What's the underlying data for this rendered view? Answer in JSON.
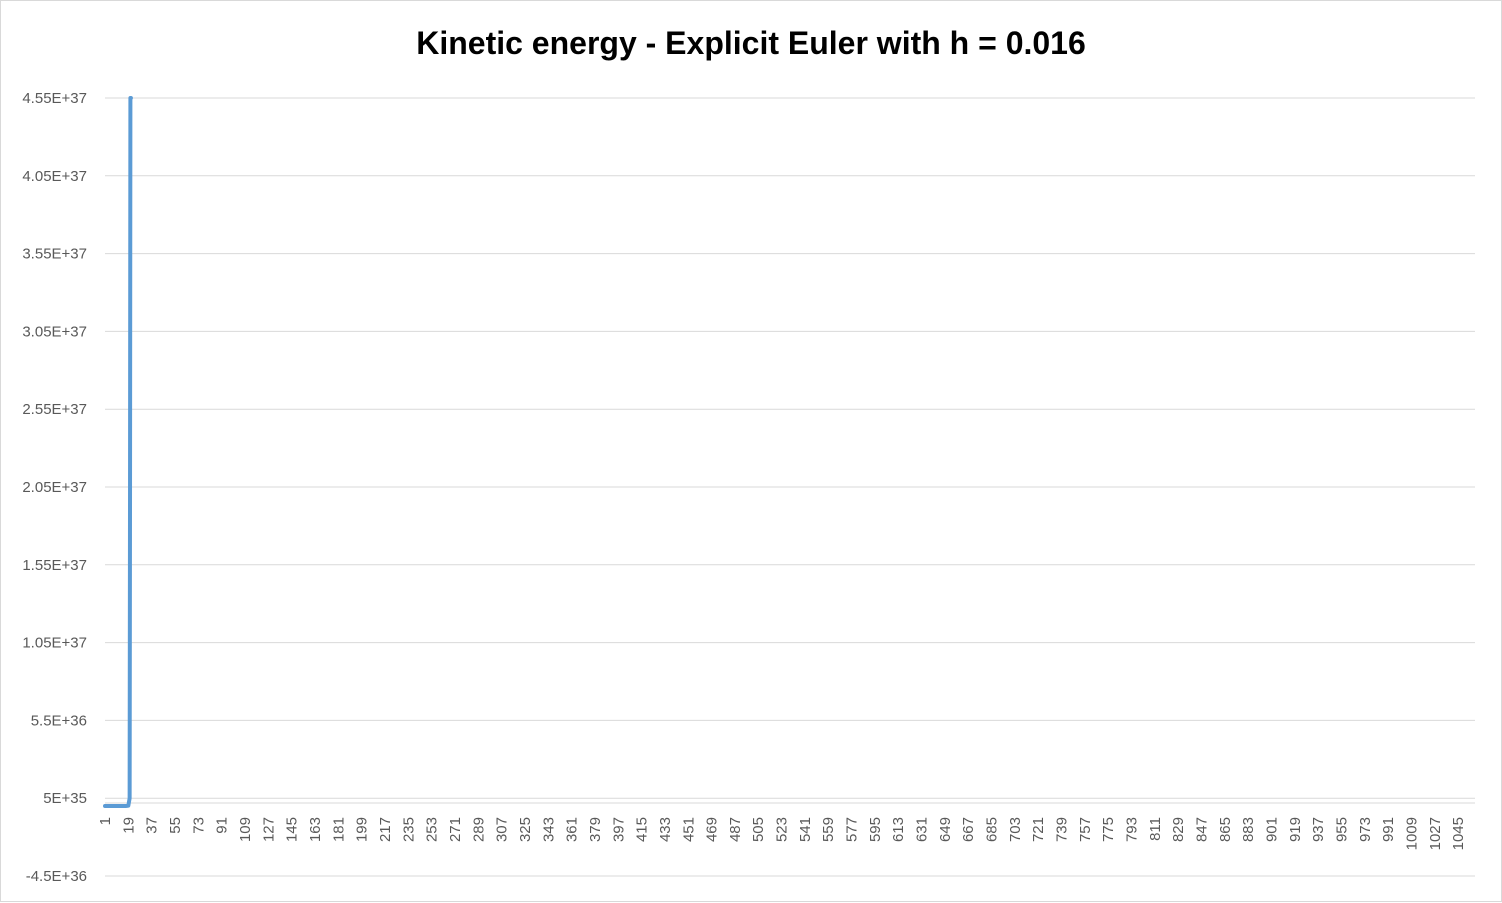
{
  "chart_data": {
    "type": "line",
    "title": "Kinetic energy - Explicit Euler with h = 0.016",
    "xlabel": "",
    "ylabel": "",
    "x_tick_labels": [
      "1",
      "19",
      "37",
      "55",
      "73",
      "91",
      "109",
      "127",
      "145",
      "163",
      "181",
      "199",
      "217",
      "235",
      "253",
      "271",
      "289",
      "307",
      "325",
      "343",
      "361",
      "379",
      "397",
      "415",
      "433",
      "451",
      "469",
      "487",
      "505",
      "523",
      "541",
      "559",
      "577",
      "595",
      "613",
      "631",
      "649",
      "667",
      "685",
      "703",
      "721",
      "739",
      "757",
      "775",
      "793",
      "811",
      "829",
      "847",
      "865",
      "883",
      "901",
      "919",
      "937",
      "955",
      "973",
      "991",
      "1009",
      "1027",
      "1045"
    ],
    "y_tick_labels": [
      "-4.5E+36",
      "5E+35",
      "5.5E+36",
      "1.05E+37",
      "1.55E+37",
      "2.05E+37",
      "2.55E+37",
      "3.05E+37",
      "3.55E+37",
      "4.05E+37",
      "4.55E+37"
    ],
    "y_ticks": [
      -4.5e+36,
      5e+35,
      5.5e+36,
      1.05e+37,
      1.55e+37,
      2.05e+37,
      2.55e+37,
      3.05e+37,
      3.55e+37,
      4.05e+37,
      4.55e+37
    ],
    "ylim": [
      -4.5e+36,
      4.55e+37
    ],
    "x_range": [
      1,
      1058
    ],
    "grid": true,
    "legend": "none",
    "series": [
      {
        "color": "#5b9bd5",
        "x": [
          1,
          10,
          17,
          19,
          20,
          20.3,
          20.6,
          21
        ],
        "y": [
          0,
          0,
          0,
          2e+34,
          5e+35,
          2e+37,
          4.55e+37,
          4.55e+37
        ]
      }
    ]
  }
}
